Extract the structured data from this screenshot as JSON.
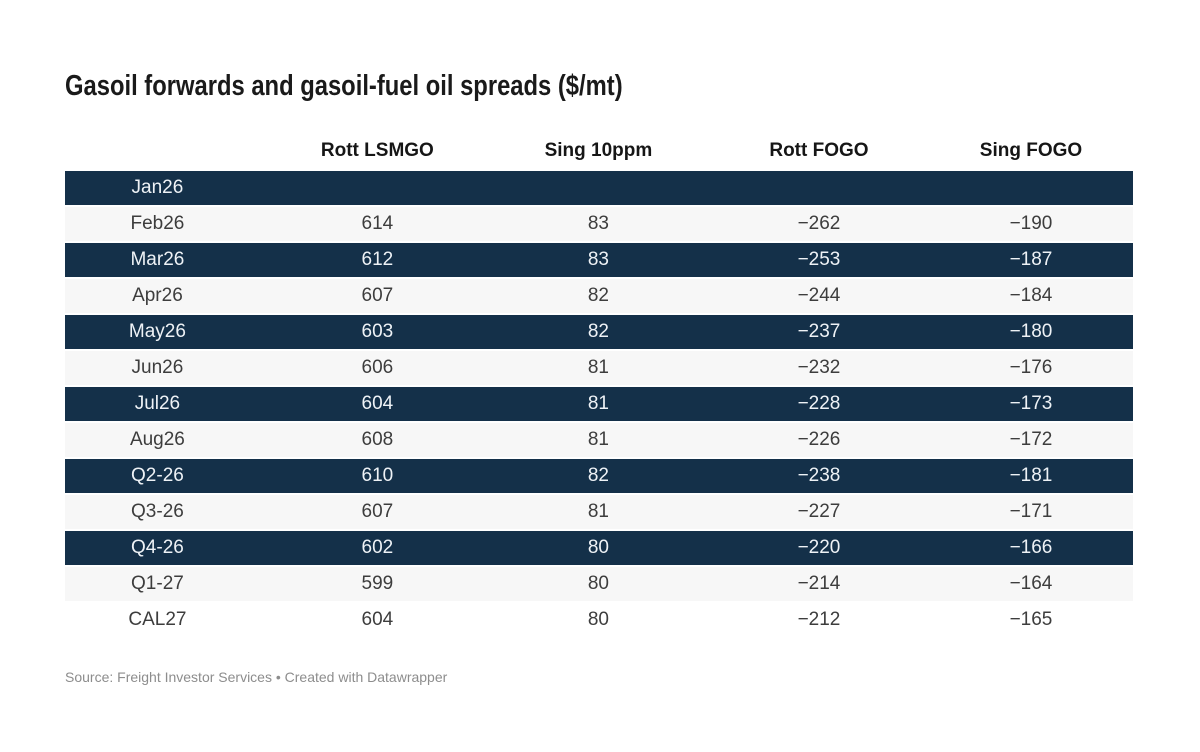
{
  "title": "Gasoil forwards and gasoil-fuel oil spreads ($/mt)",
  "footer": {
    "text": "Source: Freight Investor Services • Created with Datawrapper"
  },
  "colors": {
    "dark_row_bg": "#143049",
    "light_row_bg": "#f7f7f7",
    "dark_row_text": "#eef2f6",
    "body_text": "#3d3d3d",
    "header_text": "#161616",
    "footer_text": "#8d8d8d"
  },
  "table": {
    "headers": [
      "",
      "Rott LSMGO",
      "Sing 10ppm",
      "Rott FOGO",
      "Sing FOGO"
    ],
    "rows": [
      {
        "cells": [
          "Jan26",
          "",
          "",
          "",
          ""
        ]
      },
      {
        "cells": [
          "Feb26",
          "614",
          "83",
          "−262",
          "−190"
        ]
      },
      {
        "cells": [
          "Mar26",
          "612",
          "83",
          "−253",
          "−187"
        ]
      },
      {
        "cells": [
          "Apr26",
          "607",
          "82",
          "−244",
          "−184"
        ]
      },
      {
        "cells": [
          "May26",
          "603",
          "82",
          "−237",
          "−180"
        ]
      },
      {
        "cells": [
          "Jun26",
          "606",
          "81",
          "−232",
          "−176"
        ]
      },
      {
        "cells": [
          "Jul26",
          "604",
          "81",
          "−228",
          "−173"
        ]
      },
      {
        "cells": [
          "Aug26",
          "608",
          "81",
          "−226",
          "−172"
        ]
      },
      {
        "cells": [
          "Q2-26",
          "610",
          "82",
          "−238",
          "−181"
        ]
      },
      {
        "cells": [
          "Q3-26",
          "607",
          "81",
          "−227",
          "−171"
        ]
      },
      {
        "cells": [
          "Q4-26",
          "602",
          "80",
          "−220",
          "−166"
        ]
      },
      {
        "cells": [
          "Q1-27",
          "599",
          "80",
          "−214",
          "−164"
        ]
      },
      {
        "cells": [
          "CAL27",
          "604",
          "80",
          "−212",
          "−165"
        ]
      }
    ]
  },
  "chart_data": {
    "type": "table",
    "title": "Gasoil forwards and gasoil-fuel oil spreads ($/mt)",
    "categories": [
      "Jan26",
      "Feb26",
      "Mar26",
      "Apr26",
      "May26",
      "Jun26",
      "Jul26",
      "Aug26",
      "Q2-26",
      "Q3-26",
      "Q4-26",
      "Q1-27",
      "CAL27"
    ],
    "series": [
      {
        "name": "Rott LSMGO",
        "values": [
          null,
          614,
          612,
          607,
          603,
          606,
          604,
          608,
          610,
          607,
          602,
          599,
          604
        ]
      },
      {
        "name": "Sing 10ppm",
        "values": [
          null,
          83,
          83,
          82,
          82,
          81,
          81,
          81,
          82,
          81,
          80,
          80,
          80
        ]
      },
      {
        "name": "Rott FOGO",
        "values": [
          null,
          -262,
          -253,
          -244,
          -237,
          -232,
          -228,
          -226,
          -238,
          -227,
          -220,
          -214,
          -212
        ]
      },
      {
        "name": "Sing FOGO",
        "values": [
          null,
          -190,
          -187,
          -184,
          -180,
          -176,
          -173,
          -172,
          -181,
          -171,
          -166,
          -164,
          -165
        ]
      }
    ],
    "layout_hints": {
      "striping": "odd rows dark navy, even rows light gray, last row plain white",
      "first_row_empty": true,
      "value_alignment": "center"
    }
  }
}
